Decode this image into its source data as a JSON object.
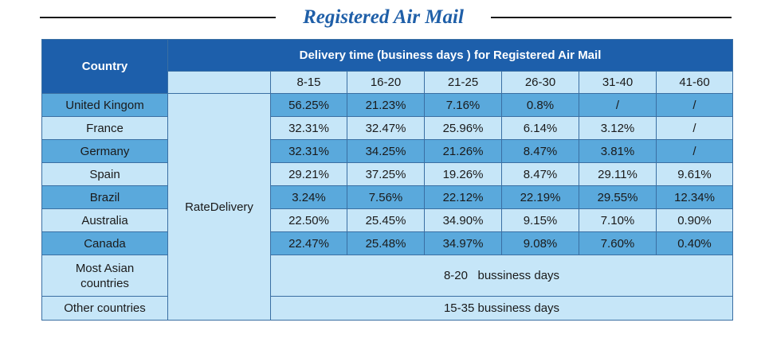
{
  "title": "Registered Air Mail",
  "table": {
    "country_header": "Country",
    "delivery_header": "Delivery time (business days ) for Registered Air Mail",
    "ranges": [
      "8-15",
      "16-20",
      "21-25",
      "26-30",
      "31-40",
      "41-60"
    ],
    "method_label": "RateDelivery",
    "rows": [
      {
        "country": "United Kingom",
        "values": [
          "56.25%",
          "21.23%",
          "7.16%",
          "0.8%",
          "/",
          "/"
        ]
      },
      {
        "country": "France",
        "values": [
          "32.31%",
          "32.47%",
          "25.96%",
          "6.14%",
          "3.12%",
          "/"
        ]
      },
      {
        "country": "Germany",
        "values": [
          "32.31%",
          "34.25%",
          "21.26%",
          "8.47%",
          "3.81%",
          "/"
        ]
      },
      {
        "country": "Spain",
        "values": [
          "29.21%",
          "37.25%",
          "19.26%",
          "8.47%",
          "29.11%",
          "9.61%"
        ]
      },
      {
        "country": "Brazil",
        "values": [
          "3.24%",
          "7.56%",
          "22.12%",
          "22.19%",
          "29.55%",
          "12.34%"
        ]
      },
      {
        "country": "Australia",
        "values": [
          "22.50%",
          "25.45%",
          "34.90%",
          "9.15%",
          "7.10%",
          "0.90%"
        ]
      },
      {
        "country": "Canada",
        "values": [
          "22.47%",
          "25.48%",
          "34.97%",
          "9.08%",
          "7.60%",
          "0.40%"
        ]
      }
    ],
    "summary_rows": [
      {
        "country": "Most  Asian\ncountries",
        "text": "8-20   bussiness days"
      },
      {
        "country": "Other countries",
        "text": "15-35 bussiness days"
      }
    ]
  },
  "colors": {
    "header_dark": "#1d5fab",
    "row_light": "#c6e6f8",
    "row_mid": "#5aa9dc",
    "title": "#1f5fa8",
    "border": "#3a6fa3"
  }
}
